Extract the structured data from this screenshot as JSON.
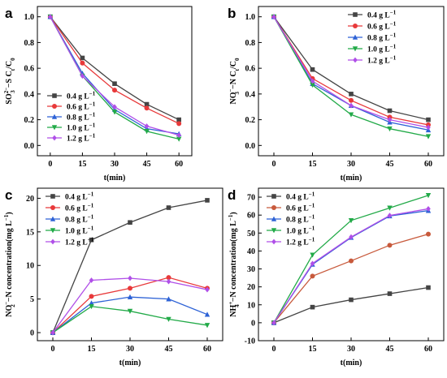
{
  "colors": {
    "s04": "#444444",
    "s06": "#e8393a",
    "s08": "#2d62d6",
    "s10": "#22aa48",
    "s12": "#b04fe8",
    "d_s06": "#c85a3c"
  },
  "markers": [
    "square",
    "circle",
    "triangle-up",
    "triangle-down",
    "diamond"
  ],
  "chart_data": [
    {
      "panel": "a",
      "type": "line",
      "ylabel_main": "SO",
      "ylabel_sup": "2−",
      "ylabel_sub": "3",
      "ylabel_rest": "−S C",
      "ylabel_sub2": "t",
      "ylabel_tail": "/C",
      "ylabel_sub3": "0",
      "xlabel": "t(min)",
      "ylim": [
        -0.08,
        1.08
      ],
      "xlim": [
        -6,
        66
      ],
      "xticks": [
        0,
        15,
        30,
        45,
        60
      ],
      "yticks": [
        0.0,
        0.2,
        0.4,
        0.6,
        0.8,
        1.0
      ],
      "ytick_labels": [
        "0.0",
        "0.2",
        "0.4",
        "0.6",
        "0.8",
        "1.0"
      ],
      "x": [
        0,
        15,
        30,
        45,
        60
      ],
      "legend_position": "bottom-left",
      "series": [
        {
          "name": "0.4 g L",
          "values": [
            1.0,
            0.68,
            0.48,
            0.32,
            0.2
          ]
        },
        {
          "name": "0.6 g L",
          "values": [
            1.0,
            0.64,
            0.43,
            0.29,
            0.17
          ]
        },
        {
          "name": "0.8 g L",
          "values": [
            1.0,
            0.56,
            0.28,
            0.13,
            0.09
          ]
        },
        {
          "name": "1.0 g L",
          "values": [
            1.0,
            0.54,
            0.26,
            0.11,
            0.05
          ]
        },
        {
          "name": "1.2 g L",
          "values": [
            1.0,
            0.54,
            0.3,
            0.15,
            0.08
          ]
        }
      ]
    },
    {
      "panel": "b",
      "type": "line",
      "ylabel_main": "NO",
      "ylabel_sup": "−",
      "ylabel_sub": "3",
      "ylabel_rest": "−N C",
      "ylabel_sub2": "t",
      "ylabel_tail": "/C",
      "ylabel_sub3": "0",
      "xlabel": "t(min)",
      "ylim": [
        -0.08,
        1.08
      ],
      "xlim": [
        -6,
        66
      ],
      "xticks": [
        0,
        15,
        30,
        45,
        60
      ],
      "yticks": [
        0.0,
        0.2,
        0.4,
        0.6,
        0.8,
        1.0
      ],
      "ytick_labels": [
        "0.0",
        "0.2",
        "0.4",
        "0.6",
        "0.8",
        "1.0"
      ],
      "x": [
        0,
        15,
        30,
        45,
        60
      ],
      "legend_position": "top-right",
      "series": [
        {
          "name": "0.4 g L",
          "values": [
            1.0,
            0.59,
            0.4,
            0.27,
            0.2
          ]
        },
        {
          "name": "0.6 g L",
          "values": [
            1.0,
            0.52,
            0.35,
            0.22,
            0.16
          ]
        },
        {
          "name": "0.8 g L",
          "values": [
            1.0,
            0.48,
            0.31,
            0.18,
            0.12
          ]
        },
        {
          "name": "1.0 g L",
          "values": [
            1.0,
            0.47,
            0.24,
            0.13,
            0.07
          ]
        },
        {
          "name": "1.2 g L",
          "values": [
            1.0,
            0.5,
            0.31,
            0.2,
            0.14
          ]
        }
      ]
    },
    {
      "panel": "c",
      "type": "line",
      "ylabel_main": "NO",
      "ylabel_sup": "−",
      "ylabel_sub": "2",
      "ylabel_rest": "−N concentration(mg L",
      "ylabel_sup2": "−1",
      "ylabel_tail": ")",
      "xlabel": "t(min)",
      "ylim": [
        -1.2,
        21.5
      ],
      "xlim": [
        -6,
        66
      ],
      "xticks": [
        0,
        15,
        30,
        45,
        60
      ],
      "yticks": [
        0,
        5,
        10,
        15,
        20
      ],
      "ytick_labels": [
        "0",
        "5",
        "10",
        "15",
        "20"
      ],
      "x": [
        0,
        15,
        30,
        45,
        60
      ],
      "legend_position": "top-left",
      "series": [
        {
          "name": "0.4 g L",
          "values": [
            0.0,
            13.8,
            16.4,
            18.6,
            19.7
          ]
        },
        {
          "name": "0.6 g L",
          "values": [
            0.0,
            5.4,
            6.6,
            8.2,
            6.6
          ]
        },
        {
          "name": "0.8 g L",
          "values": [
            0.0,
            4.4,
            5.3,
            5.0,
            2.7
          ]
        },
        {
          "name": "1.0 g L",
          "values": [
            0.0,
            3.9,
            3.2,
            2.0,
            1.1
          ]
        },
        {
          "name": "1.2 g L",
          "values": [
            0.0,
            7.8,
            8.1,
            7.6,
            6.4
          ]
        }
      ]
    },
    {
      "panel": "d",
      "type": "line",
      "ylabel_main": "NH",
      "ylabel_sup": "+",
      "ylabel_sub": "4",
      "ylabel_rest": "−N concentration(mg L",
      "ylabel_sup2": "−1",
      "ylabel_tail": ")",
      "xlabel": "t(min)",
      "ylim": [
        -10,
        75
      ],
      "xlim": [
        -6,
        66
      ],
      "xticks": [
        0,
        15,
        30,
        45,
        60
      ],
      "yticks": [
        -10,
        0,
        10,
        20,
        30,
        40,
        50,
        60,
        70
      ],
      "ytick_labels": [
        "-10",
        "0",
        "10",
        "20",
        "30",
        "40",
        "50",
        "60",
        "70"
      ],
      "x": [
        0,
        15,
        30,
        45,
        60
      ],
      "legend_position": "top-left",
      "series": [
        {
          "name": "0.4 g L",
          "values": [
            0.0,
            8.7,
            12.8,
            16.2,
            19.6
          ]
        },
        {
          "name": "0.6 g L",
          "values": [
            0.0,
            26.0,
            34.5,
            43.2,
            49.4
          ]
        },
        {
          "name": "0.8 g L",
          "values": [
            0.0,
            32.5,
            47.5,
            59.5,
            62.5
          ]
        },
        {
          "name": "1.0 g L",
          "values": [
            0.0,
            37.8,
            57.0,
            64.0,
            71.0
          ]
        },
        {
          "name": "1.2 g L",
          "values": [
            0.0,
            33.0,
            47.8,
            59.8,
            63.5
          ]
        }
      ]
    }
  ],
  "legend_unit_sup": "−1"
}
